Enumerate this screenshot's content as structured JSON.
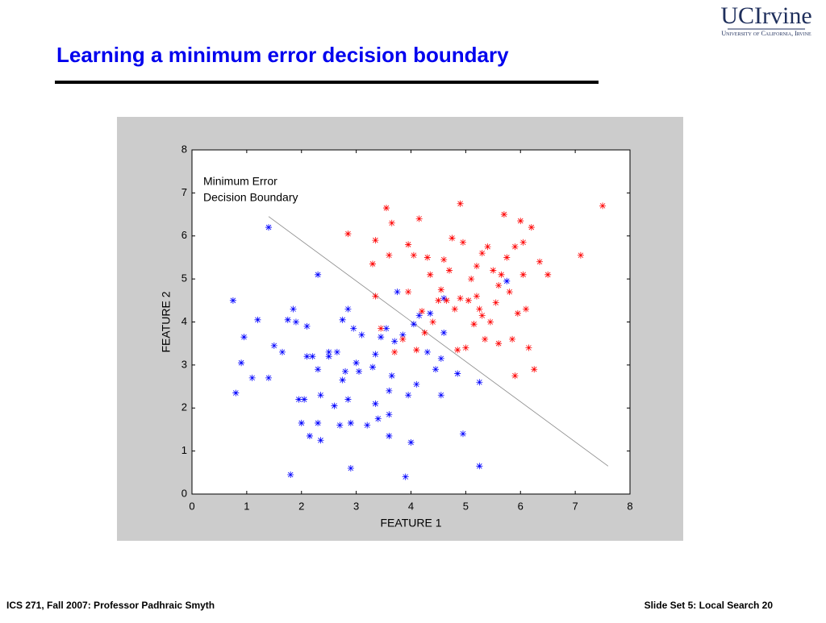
{
  "slide": {
    "title": "Learning a minimum error decision boundary",
    "footer_left": "ICS 271, Fall 2007: Professor Padhraic Smyth",
    "footer_right": "Slide Set 5: Local Search 20",
    "logo": "UCIrvine",
    "logo_sub": "University of California, Irvine"
  },
  "chart_data": {
    "type": "scatter",
    "xlabel": "FEATURE 1",
    "ylabel": "FEATURE 2",
    "annotation": [
      "Minimum Error",
      "Decision Boundary"
    ],
    "xlim": [
      0,
      8
    ],
    "ylim": [
      0,
      8
    ],
    "xticks": [
      0,
      1,
      2,
      3,
      4,
      5,
      6,
      7,
      8
    ],
    "yticks": [
      0,
      1,
      2,
      3,
      4,
      5,
      6,
      7,
      8
    ],
    "boundary": {
      "x": [
        1.4,
        7.6
      ],
      "y": [
        6.45,
        0.65
      ]
    },
    "series": [
      {
        "color": "#0000ff",
        "x": [
          1.4,
          0.75,
          0.8,
          0.9,
          0.95,
          1.1,
          1.2,
          1.4,
          1.5,
          1.65,
          1.75,
          1.8,
          1.85,
          1.9,
          1.95,
          2.0,
          2.05,
          2.1,
          2.1,
          2.15,
          2.2,
          2.3,
          2.3,
          2.3,
          2.35,
          2.35,
          2.5,
          2.5,
          2.6,
          2.65,
          2.7,
          2.75,
          2.75,
          2.8,
          2.85,
          2.85,
          2.9,
          2.9,
          2.95,
          3.0,
          3.05,
          3.1,
          3.2,
          3.3,
          3.35,
          3.35,
          3.4,
          3.45,
          3.55,
          3.6,
          3.6,
          3.6,
          3.65,
          3.7,
          3.75,
          3.85,
          3.9,
          3.95,
          4.0,
          4.05,
          4.1,
          4.15,
          4.3,
          4.35,
          4.45,
          4.55,
          4.55,
          4.6,
          4.6,
          4.85,
          4.95,
          5.25,
          5.25,
          5.75
        ],
        "y": [
          6.2,
          4.5,
          2.35,
          3.05,
          3.65,
          2.7,
          4.05,
          2.7,
          3.45,
          3.3,
          4.05,
          0.45,
          4.3,
          4.0,
          2.2,
          1.65,
          2.2,
          3.2,
          3.9,
          1.35,
          3.2,
          2.9,
          1.65,
          5.1,
          1.25,
          2.3,
          3.2,
          3.3,
          2.05,
          3.3,
          1.6,
          4.05,
          2.65,
          2.85,
          4.3,
          2.2,
          0.6,
          1.65,
          3.85,
          3.05,
          2.85,
          3.7,
          1.6,
          2.95,
          3.25,
          2.1,
          1.75,
          3.65,
          3.85,
          2.4,
          1.85,
          1.35,
          2.75,
          3.55,
          4.7,
          3.7,
          0.4,
          2.3,
          1.2,
          3.95,
          2.55,
          4.15,
          3.3,
          4.2,
          2.9,
          3.15,
          2.3,
          3.75,
          4.55,
          2.8,
          1.4,
          0.65,
          2.6,
          4.95
        ]
      },
      {
        "color": "#ff0000",
        "x": [
          2.85,
          3.3,
          3.35,
          3.35,
          3.45,
          3.55,
          3.65,
          3.6,
          3.7,
          3.85,
          3.95,
          3.95,
          4.05,
          4.1,
          4.15,
          4.2,
          4.25,
          4.3,
          4.35,
          4.4,
          4.5,
          4.55,
          4.6,
          4.7,
          4.75,
          4.8,
          4.85,
          4.9,
          4.95,
          4.9,
          5.05,
          5.1,
          5.2,
          5.2,
          5.25,
          5.3,
          5.3,
          5.35,
          5.4,
          5.45,
          5.5,
          5.55,
          5.6,
          5.65,
          5.7,
          5.75,
          5.8,
          5.85,
          5.9,
          5.9,
          5.95,
          6.0,
          6.05,
          6.1,
          6.15,
          6.2,
          6.25,
          6.35,
          6.5,
          7.1,
          7.5,
          5.15,
          5.0,
          4.65,
          5.6,
          6.05
        ],
        "y": [
          6.05,
          5.35,
          4.6,
          5.9,
          3.85,
          6.65,
          6.3,
          5.55,
          3.3,
          3.6,
          4.7,
          5.8,
          5.55,
          3.35,
          6.4,
          4.25,
          3.75,
          5.5,
          5.1,
          4.0,
          4.5,
          4.75,
          5.45,
          5.2,
          5.95,
          4.3,
          3.35,
          6.75,
          5.85,
          4.55,
          4.5,
          5.0,
          5.3,
          4.6,
          4.3,
          5.6,
          4.15,
          3.6,
          5.75,
          4.0,
          5.2,
          4.45,
          3.5,
          5.1,
          6.5,
          5.5,
          4.7,
          3.6,
          2.75,
          5.75,
          4.2,
          6.35,
          5.85,
          4.3,
          3.4,
          6.2,
          2.9,
          5.4,
          5.1,
          5.55,
          6.7,
          3.95,
          3.4,
          4.5,
          4.85,
          5.1
        ]
      }
    ]
  }
}
